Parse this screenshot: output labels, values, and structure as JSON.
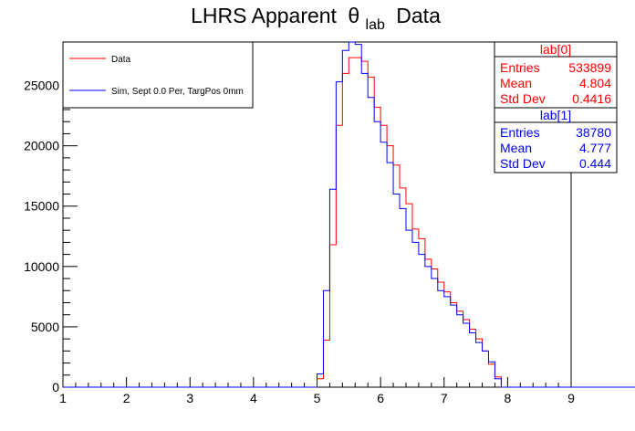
{
  "chart_data": {
    "type": "histogram-step",
    "title": "LHRS Apparent",
    "title_symbol": "θ",
    "title_subscript": "lab",
    "title_suffix": "Data",
    "xlim": [
      1,
      9
    ],
    "ylim": [
      0,
      28600
    ],
    "x_ticks": [
      1,
      2,
      3,
      4,
      5,
      6,
      7,
      8,
      9
    ],
    "x_tick_labels": [
      "1",
      "2",
      "3",
      "4",
      "5",
      "6",
      "7",
      "8",
      "9"
    ],
    "y_ticks": [
      0,
      5000,
      10000,
      15000,
      20000,
      25000
    ],
    "y_tick_labels": [
      "0",
      "5000",
      "10000",
      "15000",
      "20000",
      "25000"
    ],
    "bin_width": 0.1,
    "x_start": 1.0,
    "series": [
      {
        "name": "Data",
        "color": "#ff0000",
        "values": [
          0,
          0,
          0,
          0,
          0,
          0,
          0,
          0,
          0,
          0,
          0,
          0,
          0,
          0,
          0,
          0,
          0,
          0,
          0,
          0,
          0,
          0,
          0,
          0,
          0,
          0,
          0,
          0,
          0,
          0,
          0,
          0,
          0,
          0,
          0,
          0,
          0,
          0,
          0,
          0,
          700,
          3900,
          11800,
          21700,
          26000,
          27300,
          27300,
          27000,
          25700,
          23200,
          21700,
          20000,
          18400,
          16500,
          15200,
          13100,
          12300,
          10600,
          9800,
          8700,
          7900,
          7000,
          6300,
          5600,
          4800,
          4000,
          3000,
          1900,
          850,
          0,
          0,
          0,
          0,
          0,
          0,
          0,
          0,
          0,
          0,
          0,
          0,
          0,
          0,
          0,
          0,
          0,
          0,
          0,
          0,
          0,
          0,
          0,
          0,
          0,
          0,
          0,
          0,
          0,
          0,
          0
        ]
      },
      {
        "name": "Sim, Sept 0.0 Per, TargPos 0mm",
        "color": "#0000ff",
        "values": [
          0,
          0,
          0,
          0,
          0,
          0,
          0,
          0,
          0,
          0,
          0,
          0,
          0,
          0,
          0,
          0,
          0,
          0,
          0,
          0,
          0,
          0,
          0,
          0,
          0,
          0,
          0,
          0,
          0,
          0,
          0,
          0,
          0,
          0,
          0,
          0,
          0,
          0,
          0,
          0,
          1100,
          8000,
          16400,
          25300,
          27900,
          28600,
          28400,
          26000,
          24000,
          22000,
          20300,
          18600,
          16000,
          14800,
          13000,
          12000,
          11000,
          10000,
          9000,
          8000,
          7500,
          6800,
          6000,
          5300,
          4500,
          3700,
          3000,
          2100,
          700,
          0,
          0,
          0,
          0,
          0,
          0,
          0,
          0,
          0,
          0,
          0,
          0,
          0,
          0,
          0,
          0,
          0,
          0,
          0,
          0,
          0,
          0,
          0,
          0,
          0,
          0,
          0,
          0,
          0,
          0,
          0
        ]
      }
    ],
    "legend": {
      "placement": "top-left",
      "entries": [
        "Data",
        "Sim, Sept 0.0 Per, TargPos 0mm"
      ]
    },
    "stats_boxes": [
      {
        "header": "lab[0]",
        "color": "#ff0000",
        "rows": [
          {
            "label": "Entries",
            "value": "533899"
          },
          {
            "label": "Mean",
            "value": "4.804"
          },
          {
            "label": "Std Dev",
            "value": "0.4416"
          }
        ]
      },
      {
        "header": "lab[1]",
        "color": "#0000ff",
        "rows": [
          {
            "label": "Entries",
            "value": "38780"
          },
          {
            "label": "Mean",
            "value": "4.777"
          },
          {
            "label": "Std Dev",
            "value": "0.444"
          }
        ]
      }
    ]
  }
}
